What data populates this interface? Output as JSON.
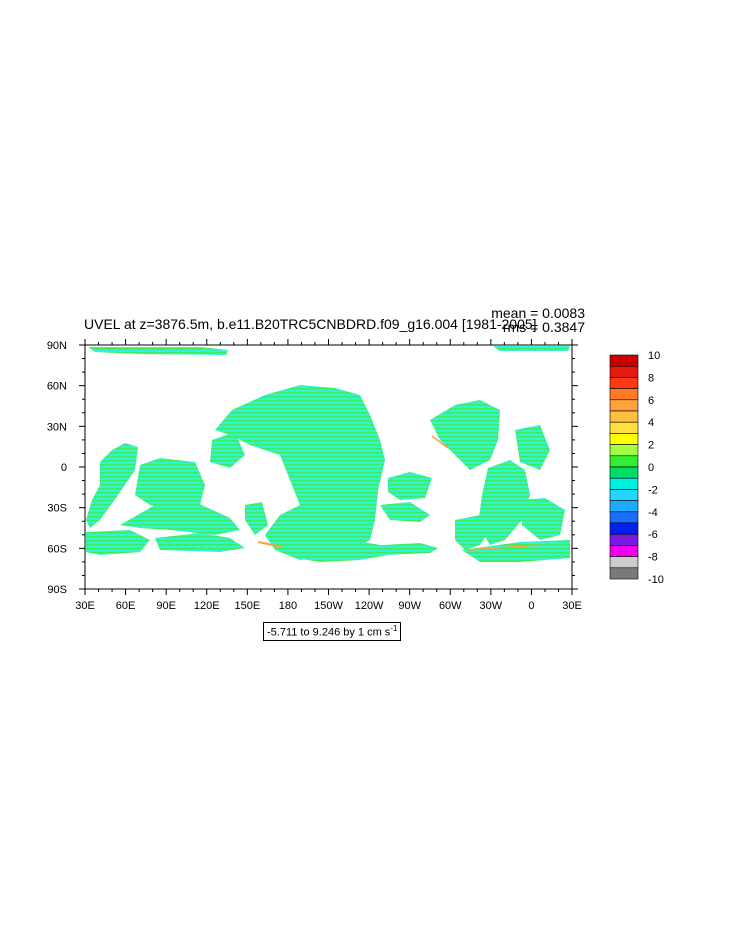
{
  "chart_data": {
    "type": "heatmap",
    "title": "UVEL at z=3876.5m, b.e11.B20TRC5CNBDRD.f09_g16.004 [1981-2005]",
    "stats": {
      "mean": "mean = 0.0083",
      "rms": "rms = 0.3847"
    },
    "range_note": "-5.711 to 9.246 by 1 cm s",
    "range_exp": "-1",
    "x_ticks": [
      "30E",
      "60E",
      "90E",
      "120E",
      "150E",
      "180",
      "150W",
      "120W",
      "90W",
      "60W",
      "30W",
      "0",
      "30E"
    ],
    "y_ticks": [
      "90N",
      "60N",
      "30N",
      "0",
      "30S",
      "60S",
      "90S"
    ],
    "colorbar": {
      "labels": [
        "10",
        "8",
        "6",
        "4",
        "2",
        "0",
        "-2",
        "-4",
        "-6",
        "-8",
        "-10"
      ],
      "colors": [
        "#c80000",
        "#e41a10",
        "#ff3a10",
        "#ff7a20",
        "#ffa23c",
        "#ffc040",
        "#ffe040",
        "#ffff00",
        "#a0ff40",
        "#33ee33",
        "#00dd66",
        "#00f0e0",
        "#20d8ff",
        "#20aaff",
        "#1a6eff",
        "#0020f0",
        "#7a1ae0",
        "#ee00ee",
        "#cccccc",
        "#7a7a7a"
      ]
    },
    "xlim": [
      -330,
      30
    ],
    "ylim": [
      -90,
      90
    ],
    "fill_colors": {
      "teal": "#33f0d6",
      "green": "#3cec5a",
      "orange": "#ffa040"
    }
  }
}
